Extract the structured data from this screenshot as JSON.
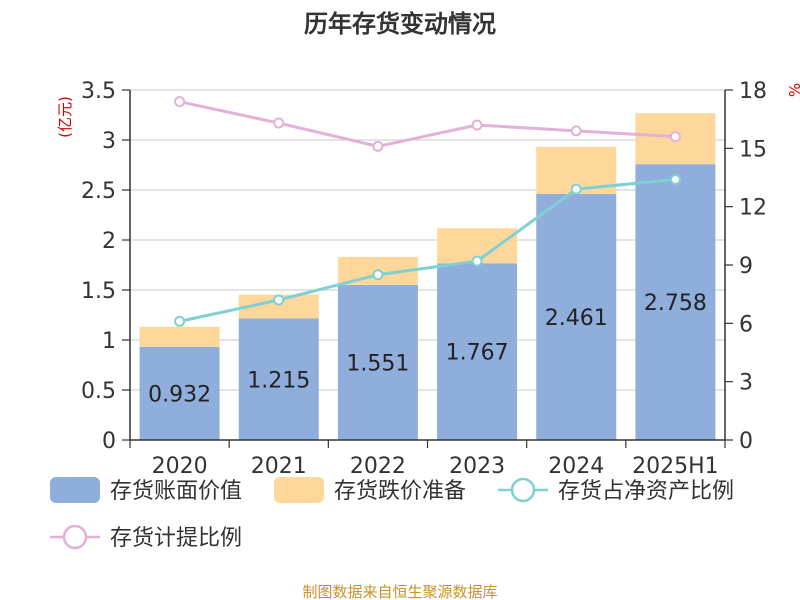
{
  "title": "历年存货变动情况",
  "source": "制图数据来自恒生聚源数据库",
  "colors": {
    "book_value": "#8faedb",
    "reserve": "#fdd89a",
    "net_ratio": "#80d0d3",
    "provision_ratio": "#e4b0d8",
    "unit": "#d40000",
    "source": "#c8922a",
    "axis": "#333333",
    "grid": "#c8c8c8"
  },
  "chart_data": {
    "type": "bar",
    "title": "历年存货变动情况",
    "categories": [
      "2020",
      "2021",
      "2022",
      "2023",
      "2024",
      "2025H1"
    ],
    "left_axis": {
      "unit": "(亿元)",
      "ylim": [
        0,
        3.5
      ],
      "ticks": [
        "0",
        "0.5",
        "1",
        "1.5",
        "2",
        "2.5",
        "3",
        "3.5"
      ]
    },
    "right_axis": {
      "unit": "%",
      "ylim": [
        0,
        18
      ],
      "ticks": [
        "0",
        "3",
        "6",
        "9",
        "12",
        "15",
        "18"
      ]
    },
    "grid": true,
    "legend_position": "bottom",
    "series": [
      {
        "name": "存货账面价值",
        "kind": "bar",
        "axis": "left",
        "values": [
          0.932,
          1.215,
          1.551,
          1.767,
          2.461,
          2.758
        ],
        "labels": [
          "0.932",
          "1.215",
          "1.551",
          "1.767",
          "2.461",
          "2.758"
        ]
      },
      {
        "name": "存货跌价准备",
        "kind": "bar-stacked",
        "axis": "left",
        "values": [
          0.2,
          0.24,
          0.28,
          0.35,
          0.47,
          0.51
        ]
      },
      {
        "name": "存货占净资产比例",
        "kind": "line",
        "axis": "right",
        "values": [
          6.1,
          7.2,
          8.5,
          9.2,
          12.9,
          13.4
        ]
      },
      {
        "name": "存货计提比例",
        "kind": "line",
        "axis": "right",
        "values": [
          17.4,
          16.3,
          15.1,
          16.2,
          15.9,
          15.6
        ]
      }
    ]
  }
}
